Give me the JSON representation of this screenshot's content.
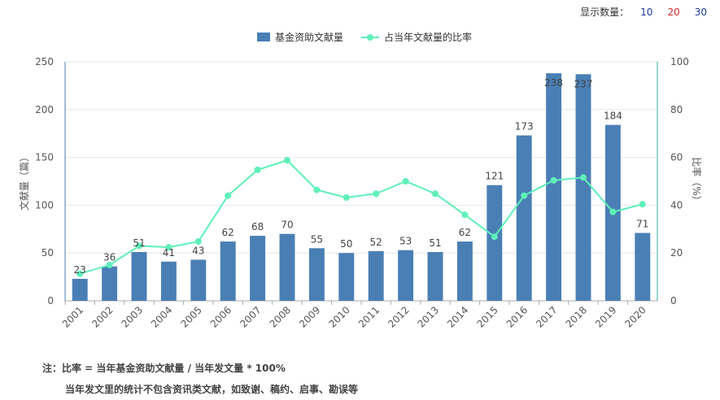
{
  "count_selector": {
    "label": "显示数量：",
    "options": [
      {
        "label": "10",
        "color": "#1e3a9a"
      },
      {
        "label": "20",
        "color": "#d62b2b"
      },
      {
        "label": "30",
        "color": "#1e3a9a"
      }
    ]
  },
  "chart_data": {
    "type": "bar",
    "categories": [
      "2001",
      "2002",
      "2003",
      "2004",
      "2005",
      "2006",
      "2007",
      "2008",
      "2009",
      "2010",
      "2011",
      "2012",
      "2013",
      "2014",
      "2015",
      "2016",
      "2017",
      "2018",
      "2019",
      "2020"
    ],
    "series": [
      {
        "name": "基金资助文献量",
        "type": "bar",
        "axis": "left",
        "color": "#4a7fb5",
        "values": [
          23,
          36,
          51,
          41,
          43,
          62,
          68,
          70,
          55,
          50,
          52,
          53,
          51,
          62,
          121,
          173,
          238,
          237,
          184,
          71
        ]
      },
      {
        "name": "占当年文献量的比率",
        "type": "line",
        "axis": "right",
        "color": "#5ff0b8",
        "values": [
          11.3,
          15,
          23,
          22.4,
          24.8,
          44,
          54.8,
          58.8,
          46.4,
          43.2,
          44.8,
          50,
          44.8,
          36,
          26.8,
          44,
          50.4,
          51.6,
          37.2,
          40.4
        ]
      }
    ],
    "ylabel": "文献量（篇）",
    "ylabel_right": "比率（%）",
    "ylim": [
      0,
      250
    ],
    "ylim_right": [
      0,
      100
    ],
    "yticks": [
      "0",
      "50",
      "100",
      "150",
      "200",
      "250"
    ],
    "yticks_right": [
      "0",
      "20",
      "40",
      "60",
      "80",
      "100"
    ],
    "grid": true,
    "legend_position": "top-center"
  },
  "notes": {
    "line1": "注：比率 = 当年基金资助文献量 / 当年发文量 * 100%",
    "line2": "当年发文里的统计不包含资讯类文献，如致谢、稿约、启事、勘误等"
  }
}
